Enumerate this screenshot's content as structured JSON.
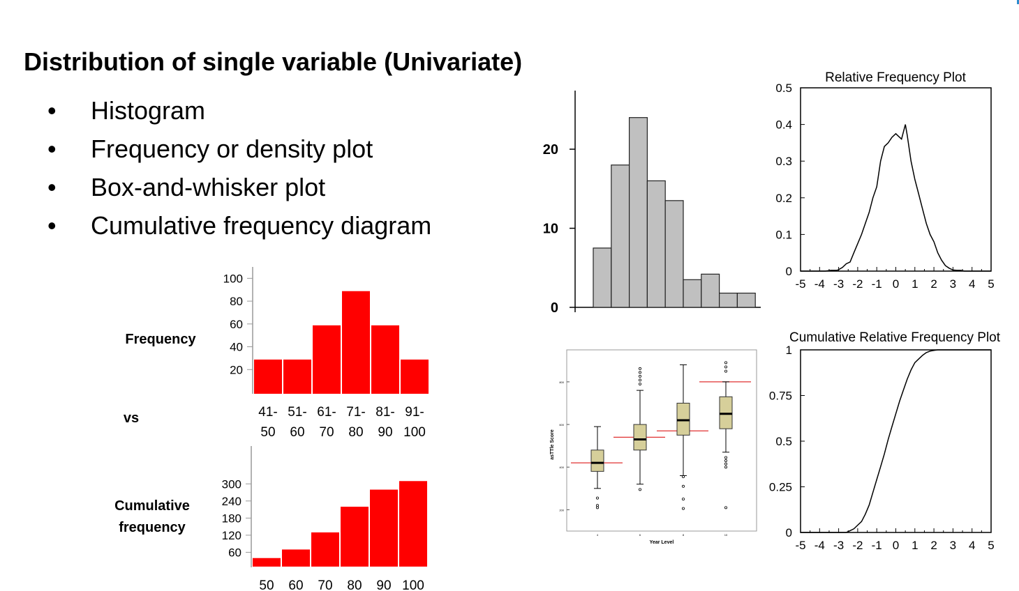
{
  "slide": {
    "title": "Distribution of single variable (Univariate)",
    "bullets": [
      "Histogram",
      "Frequency or density plot",
      "Box-and-whisker plot",
      "Cumulative frequency diagram"
    ],
    "bullet_glyph": "•",
    "vs_label": "vs",
    "accent_color": "#2a8ccf"
  },
  "chart_data": [
    {
      "id": "frequency-bars",
      "type": "bar",
      "ylabel": "Frequency",
      "categories": [
        "41-50",
        "51-60",
        "61-70",
        "71-80",
        "81-90",
        "91-100"
      ],
      "category_lines": [
        [
          "41-",
          "50"
        ],
        [
          "51-",
          "60"
        ],
        [
          "61-",
          "70"
        ],
        [
          "71-",
          "80"
        ],
        [
          "81-",
          "90"
        ],
        [
          "91-",
          "100"
        ]
      ],
      "values": [
        30,
        30,
        60,
        90,
        60,
        30
      ],
      "yticks": [
        20,
        40,
        60,
        80,
        100
      ],
      "ylim": [
        0,
        110
      ],
      "color": "#ff0000"
    },
    {
      "id": "cumulative-bars",
      "type": "bar",
      "ylabel_lines": [
        "Cumulative",
        "frequency"
      ],
      "categories": [
        "50",
        "60",
        "70",
        "80",
        "90",
        "100"
      ],
      "values": [
        30,
        60,
        120,
        210,
        270,
        300
      ],
      "yticks": [
        60,
        120,
        180,
        240,
        300
      ],
      "ylim": [
        0,
        330
      ],
      "color": "#ff0000"
    },
    {
      "id": "gray-histogram",
      "type": "bar",
      "values": [
        7.5,
        18,
        24,
        16,
        13.5,
        3.5,
        4.2,
        1.8,
        1.8
      ],
      "yticks": [
        0,
        10,
        20
      ],
      "ylim": [
        0,
        26
      ],
      "color": "#c0c0c0"
    },
    {
      "id": "relative-frequency",
      "type": "line",
      "title": "Relative Frequency Plot",
      "xticks": [
        "-5",
        "-4",
        "-3",
        "-2",
        "-1",
        "0",
        "1",
        "2",
        "3",
        "4",
        "5"
      ],
      "yticks": [
        "0",
        "0.1",
        "0.2",
        "0.3",
        "0.4",
        "0.5"
      ],
      "xlim": [
        -5,
        5
      ],
      "ylim": [
        0,
        0.5
      ],
      "x": [
        -5,
        -3.7,
        -3.4,
        -3.1,
        -3.0,
        -2.8,
        -2.6,
        -2.4,
        -2.2,
        -2.0,
        -1.8,
        -1.6,
        -1.4,
        -1.2,
        -1.0,
        -0.8,
        -0.6,
        -0.4,
        -0.2,
        0.0,
        0.1,
        0.3,
        0.5,
        0.6,
        0.8,
        1.0,
        1.2,
        1.4,
        1.6,
        1.8,
        2.0,
        2.2,
        2.4,
        2.6,
        2.8,
        3.0,
        3.2,
        3.4,
        3.6,
        5
      ],
      "y": [
        0,
        0,
        0.002,
        0.002,
        0.004,
        0.01,
        0.02,
        0.025,
        0.05,
        0.075,
        0.1,
        0.13,
        0.16,
        0.2,
        0.23,
        0.3,
        0.34,
        0.35,
        0.365,
        0.375,
        0.37,
        0.36,
        0.4,
        0.37,
        0.3,
        0.25,
        0.21,
        0.17,
        0.13,
        0.1,
        0.08,
        0.05,
        0.03,
        0.015,
        0.008,
        0.003,
        0.002,
        0.002,
        0,
        0
      ]
    },
    {
      "id": "cumulative-relative-frequency",
      "type": "line",
      "title": "Cumulative Relative Frequency Plot",
      "xticks": [
        "-5",
        "-4",
        "-3",
        "-2",
        "-1",
        "0",
        "1",
        "2",
        "3",
        "4",
        "5"
      ],
      "yticks": [
        "0",
        "0.25",
        "0.5",
        "0.75",
        "1"
      ],
      "xlim": [
        -5,
        5
      ],
      "ylim": [
        0,
        1
      ],
      "x": [
        -5,
        -2.6,
        -2.4,
        -2.2,
        -2.0,
        -1.8,
        -1.6,
        -1.4,
        -1.2,
        -1.0,
        -0.8,
        -0.6,
        -0.4,
        -0.2,
        0.0,
        0.2,
        0.4,
        0.6,
        0.8,
        1.0,
        1.2,
        1.4,
        1.6,
        1.8,
        2.0,
        2.2,
        2.4,
        5
      ],
      "y": [
        0,
        0,
        0.01,
        0.02,
        0.04,
        0.06,
        0.1,
        0.15,
        0.22,
        0.29,
        0.36,
        0.43,
        0.51,
        0.58,
        0.65,
        0.72,
        0.78,
        0.84,
        0.89,
        0.93,
        0.95,
        0.97,
        0.985,
        0.993,
        0.997,
        1.0,
        1.0,
        1.0
      ]
    },
    {
      "id": "box-plot",
      "type": "box",
      "xlabel": "Year Level",
      "ylabel": "asTTle Score",
      "categories": [
        "4",
        "6",
        "8",
        "10"
      ],
      "yticks": [
        "200",
        "400",
        "600",
        "800"
      ],
      "ylim": [
        100,
        950
      ],
      "boxes": [
        {
          "min": 300,
          "q1": 380,
          "median": 420,
          "q3": 480,
          "max": 590,
          "outliers": [
            210,
            220,
            255
          ]
        },
        {
          "min": 320,
          "q1": 480,
          "median": 530,
          "q3": 600,
          "max": 760,
          "outliers": [
            295,
            790,
            808,
            826,
            844,
            862
          ]
        },
        {
          "min": 360,
          "q1": 550,
          "median": 620,
          "q3": 700,
          "max": 880,
          "outliers": [
            206,
            250,
            310,
            355
          ]
        },
        {
          "min": 470,
          "q1": 580,
          "median": 650,
          "q3": 730,
          "max": 800,
          "outliers": [
            210,
            400,
            415,
            430,
            445,
            850,
            870,
            890
          ]
        }
      ],
      "reference_lines": [
        420,
        540,
        570,
        800
      ],
      "box_color": "#d6cf9a",
      "reference_color": "#e03030"
    }
  ]
}
